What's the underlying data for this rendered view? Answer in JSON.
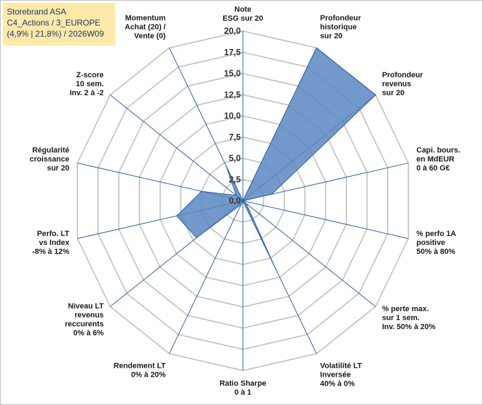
{
  "info_box": {
    "line1": "Storebrand ASA",
    "line2": "C4_Actions / 3_EUROPE",
    "line3": "(4,9% | 21,8%) / 2026W09"
  },
  "chart_data": {
    "type": "radar",
    "axes": [
      [
        "Note",
        "ESG sur 20"
      ],
      [
        "Profondeur",
        "historique",
        "sur 20"
      ],
      [
        "Profondeur",
        "revenus",
        "sur 20"
      ],
      [
        "Capi. bours.",
        "en MdEUR",
        "0 à 60 G€"
      ],
      [
        "% perfo 1A",
        "positive",
        "50% à 80%"
      ],
      [
        "% perte max.",
        "sur 1 sem.",
        "Inv. 50% à 20%"
      ],
      [
        "Volatilité LT",
        "Inversée",
        "40% à 0%"
      ],
      [
        "Ratio Sharpe",
        "0 à 1"
      ],
      [
        "Rendement LT",
        "0% à 20%"
      ],
      [
        "Niveau LT",
        "revenus",
        "reccurents",
        "0% à 6%"
      ],
      [
        "Perfo. LT",
        "vs Index",
        "-8% à 12%"
      ],
      [
        "Régularité",
        "croissance",
        "sur 20"
      ],
      [
        "Z-score",
        "10 sem.",
        "Inv. 2 à -2"
      ],
      [
        "Momentum",
        "Achat (20) /",
        "Vente (0)"
      ]
    ],
    "values": [
      0,
      20,
      20,
      3.5,
      0,
      0.5,
      9,
      0,
      0.5,
      7,
      8,
      5,
      1,
      4.5
    ],
    "rlim": [
      0,
      20
    ],
    "ticks": [
      "0,0",
      "2,5",
      "5,0",
      "7,5",
      "10,0",
      "12,5",
      "15,0",
      "17,5",
      "20,0"
    ],
    "fill_color": "#5b87c2",
    "stroke_color": "#2e5fa3",
    "grid_color": "#bfbfbf",
    "spoke_color": "#2e5fa3",
    "legend": "none"
  }
}
